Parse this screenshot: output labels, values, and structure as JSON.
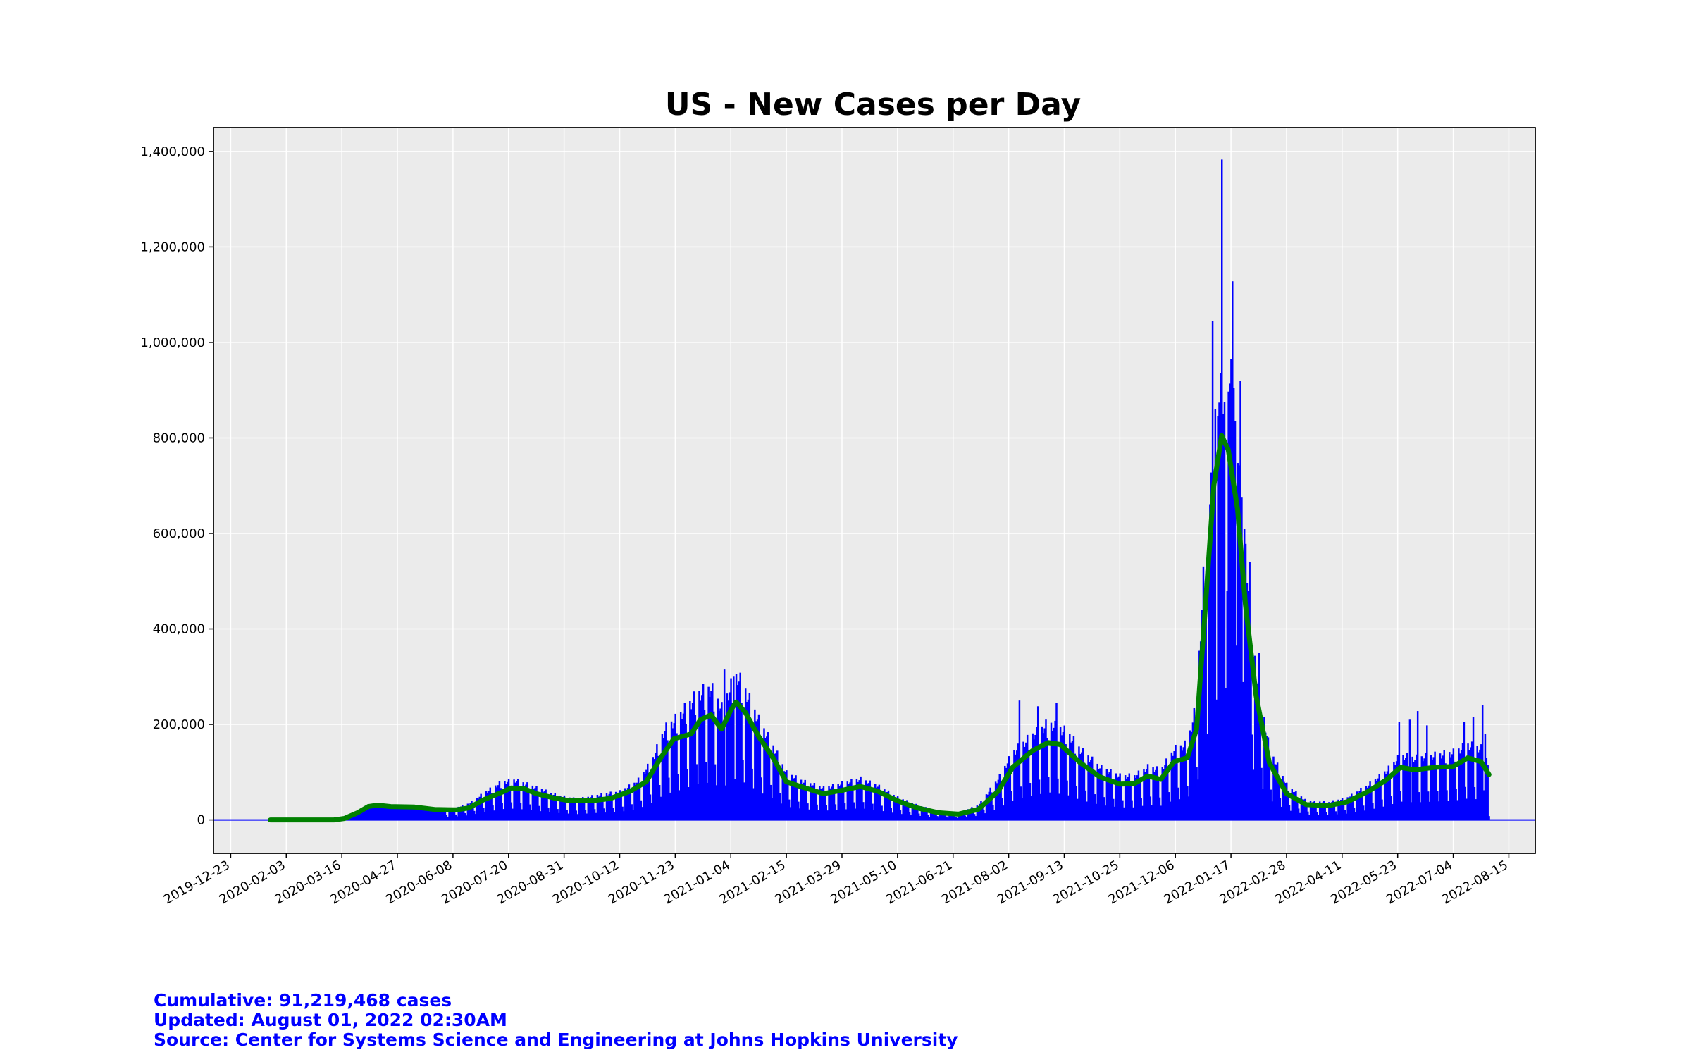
{
  "colors": {
    "bars": "#0000ff",
    "rolling_line": "#008000",
    "plot_background": "#ebebeb",
    "grid": "#ffffff",
    "footer_text": "#0000ff"
  },
  "footer": {
    "cumulative": "Cumulative:  91,219,468 cases",
    "updated": "Updated:  August 01, 2022 02:30AM",
    "source": "Source: Center for Systems Science and Engineering at Johns Hopkins University"
  },
  "chart_data": {
    "type": "bar",
    "title": "US - New Cases per Day",
    "xlabel": "",
    "ylabel": "",
    "xlim": [
      "2019-12-10",
      "2022-09-04"
    ],
    "ylim": [
      -70000,
      1450000
    ],
    "grid": true,
    "x_ticks": [
      "2019-12-23",
      "2020-02-03",
      "2020-03-16",
      "2020-04-27",
      "2020-06-08",
      "2020-07-20",
      "2020-08-31",
      "2020-10-12",
      "2020-11-23",
      "2021-01-04",
      "2021-02-15",
      "2021-03-29",
      "2021-05-10",
      "2021-06-21",
      "2021-08-02",
      "2021-09-13",
      "2021-10-25",
      "2021-12-06",
      "2022-01-17",
      "2022-02-28",
      "2022-04-11",
      "2022-05-23",
      "2022-07-04",
      "2022-08-15"
    ],
    "y_ticks": [
      0,
      200000,
      400000,
      600000,
      800000,
      1000000,
      1200000,
      1400000
    ],
    "y_tick_labels": [
      "0",
      "200,000",
      "400,000",
      "600,000",
      "800,000",
      "1,000,000",
      "1,200,000",
      "1,400,000"
    ],
    "series": [
      {
        "kind": "bars",
        "anchors": [
          [
            "2020-01-22",
            0
          ],
          [
            "2020-03-01",
            100
          ],
          [
            "2020-03-15",
            3000
          ],
          [
            "2020-03-25",
            15000
          ],
          [
            "2020-04-05",
            30000
          ],
          [
            "2020-04-12",
            32000
          ],
          [
            "2020-04-25",
            30000
          ],
          [
            "2020-05-10",
            27000
          ],
          [
            "2020-05-25",
            21000
          ],
          [
            "2020-06-08",
            19000
          ],
          [
            "2020-06-20",
            28000
          ],
          [
            "2020-07-01",
            45000
          ],
          [
            "2020-07-15",
            65000
          ],
          [
            "2020-07-25",
            68000
          ],
          [
            "2020-08-10",
            55000
          ],
          [
            "2020-08-25",
            42000
          ],
          [
            "2020-09-10",
            35000
          ],
          [
            "2020-09-25",
            42000
          ],
          [
            "2020-10-12",
            48000
          ],
          [
            "2020-10-25",
            65000
          ],
          [
            "2020-11-05",
            100000
          ],
          [
            "2020-11-15",
            155000
          ],
          [
            "2020-11-25",
            175000
          ],
          [
            "2020-12-10",
            215000
          ],
          [
            "2020-12-20",
            225000
          ],
          [
            "2020-12-28",
            190000
          ],
          [
            "2021-01-08",
            250000
          ],
          [
            "2021-01-15",
            220000
          ],
          [
            "2021-01-25",
            170000
          ],
          [
            "2021-02-05",
            125000
          ],
          [
            "2021-02-15",
            80000
          ],
          [
            "2021-02-28",
            65000
          ],
          [
            "2021-03-15",
            55000
          ],
          [
            "2021-03-29",
            62000
          ],
          [
            "2021-04-12",
            70000
          ],
          [
            "2021-04-25",
            58000
          ],
          [
            "2021-05-10",
            38000
          ],
          [
            "2021-05-25",
            25000
          ],
          [
            "2021-06-10",
            14000
          ],
          [
            "2021-06-25",
            12000
          ],
          [
            "2021-07-10",
            25000
          ],
          [
            "2021-07-25",
            70000
          ],
          [
            "2021-08-05",
            115000
          ],
          [
            "2021-08-20",
            145000
          ],
          [
            "2021-09-01",
            165000
          ],
          [
            "2021-09-15",
            150000
          ],
          [
            "2021-09-25",
            120000
          ],
          [
            "2021-10-10",
            90000
          ],
          [
            "2021-10-25",
            75000
          ],
          [
            "2021-11-05",
            75000
          ],
          [
            "2021-11-15",
            90000
          ],
          [
            "2021-11-25",
            85000
          ],
          [
            "2021-12-05",
            120000
          ],
          [
            "2021-12-15",
            130000
          ],
          [
            "2021-12-22",
            200000
          ],
          [
            "2021-12-28",
            450000
          ],
          [
            "2022-01-05",
            700000
          ],
          [
            "2022-01-10",
            800000
          ],
          [
            "2022-01-15",
            780000
          ],
          [
            "2022-01-22",
            650000
          ],
          [
            "2022-01-30",
            400000
          ],
          [
            "2022-02-05",
            250000
          ],
          [
            "2022-02-15",
            120000
          ],
          [
            "2022-02-28",
            60000
          ],
          [
            "2022-03-15",
            32000
          ],
          [
            "2022-04-01",
            30000
          ],
          [
            "2022-04-15",
            38000
          ],
          [
            "2022-05-01",
            60000
          ],
          [
            "2022-05-15",
            85000
          ],
          [
            "2022-05-25",
            110000
          ],
          [
            "2022-06-05",
            105000
          ],
          [
            "2022-06-20",
            110000
          ],
          [
            "2022-07-04",
            115000
          ],
          [
            "2022-07-15",
            128000
          ],
          [
            "2022-07-25",
            122000
          ],
          [
            "2022-07-31",
            95000
          ]
        ],
        "spikes": [
          [
            "2020-12-30",
            315000
          ],
          [
            "2021-01-06",
            300000
          ],
          [
            "2021-01-08",
            305000
          ],
          [
            "2021-08-10",
            250000
          ],
          [
            "2021-08-24",
            238000
          ],
          [
            "2021-09-07",
            245000
          ],
          [
            "2021-12-29",
            500000
          ],
          [
            "2021-12-31",
            590000
          ],
          [
            "2022-01-03",
            1045000
          ],
          [
            "2022-01-05",
            860000
          ],
          [
            "2022-01-07",
            845000
          ],
          [
            "2022-01-10",
            1383000
          ],
          [
            "2022-01-11",
            850000
          ],
          [
            "2022-01-12",
            875000
          ],
          [
            "2022-01-14",
            480000
          ],
          [
            "2022-01-18",
            1128000
          ],
          [
            "2022-01-19",
            905000
          ],
          [
            "2022-01-20",
            835000
          ],
          [
            "2022-01-21",
            365000
          ],
          [
            "2022-01-24",
            920000
          ],
          [
            "2022-01-25",
            675000
          ],
          [
            "2022-01-27",
            610000
          ],
          [
            "2022-01-31",
            540000
          ],
          [
            "2022-02-07",
            350000
          ],
          [
            "2022-05-24",
            205000
          ],
          [
            "2022-06-01",
            210000
          ],
          [
            "2022-06-07",
            228000
          ],
          [
            "2022-06-14",
            198000
          ],
          [
            "2022-07-12",
            205000
          ],
          [
            "2022-07-19",
            215000
          ],
          [
            "2022-07-26",
            240000
          ],
          [
            "2022-07-28",
            180000
          ]
        ]
      },
      {
        "kind": "rolling_line",
        "points": [
          [
            "2020-01-22",
            0
          ],
          [
            "2020-03-10",
            0
          ],
          [
            "2020-03-18",
            3000
          ],
          [
            "2020-03-28",
            15000
          ],
          [
            "2020-04-05",
            28000
          ],
          [
            "2020-04-12",
            31000
          ],
          [
            "2020-04-22",
            28000
          ],
          [
            "2020-05-10",
            27000
          ],
          [
            "2020-05-25",
            22000
          ],
          [
            "2020-06-10",
            21000
          ],
          [
            "2020-06-20",
            25000
          ],
          [
            "2020-07-01",
            42000
          ],
          [
            "2020-07-15",
            58000
          ],
          [
            "2020-07-22",
            67000
          ],
          [
            "2020-08-01",
            65000
          ],
          [
            "2020-08-10",
            55000
          ],
          [
            "2020-08-25",
            45000
          ],
          [
            "2020-09-05",
            40000
          ],
          [
            "2020-09-20",
            40000
          ],
          [
            "2020-10-05",
            45000
          ],
          [
            "2020-10-20",
            60000
          ],
          [
            "2020-11-01",
            80000
          ],
          [
            "2020-11-12",
            130000
          ],
          [
            "2020-11-22",
            170000
          ],
          [
            "2020-12-05",
            180000
          ],
          [
            "2020-12-12",
            210000
          ],
          [
            "2020-12-20",
            220000
          ],
          [
            "2020-12-28",
            190000
          ],
          [
            "2021-01-04",
            230000
          ],
          [
            "2021-01-08",
            247000
          ],
          [
            "2021-01-15",
            225000
          ],
          [
            "2021-01-25",
            175000
          ],
          [
            "2021-02-05",
            130000
          ],
          [
            "2021-02-15",
            80000
          ],
          [
            "2021-02-28",
            68000
          ],
          [
            "2021-03-15",
            55000
          ],
          [
            "2021-03-29",
            62000
          ],
          [
            "2021-04-12",
            70000
          ],
          [
            "2021-04-25",
            60000
          ],
          [
            "2021-05-10",
            40000
          ],
          [
            "2021-05-25",
            25000
          ],
          [
            "2021-06-10",
            15000
          ],
          [
            "2021-06-25",
            12000
          ],
          [
            "2021-07-10",
            22000
          ],
          [
            "2021-07-25",
            60000
          ],
          [
            "2021-08-05",
            110000
          ],
          [
            "2021-08-20",
            145000
          ],
          [
            "2021-09-01",
            162000
          ],
          [
            "2021-09-10",
            158000
          ],
          [
            "2021-09-25",
            120000
          ],
          [
            "2021-10-10",
            90000
          ],
          [
            "2021-10-25",
            75000
          ],
          [
            "2021-11-05",
            76000
          ],
          [
            "2021-11-15",
            92000
          ],
          [
            "2021-11-25",
            85000
          ],
          [
            "2021-12-05",
            122000
          ],
          [
            "2021-12-15",
            130000
          ],
          [
            "2021-12-22",
            190000
          ],
          [
            "2021-12-28",
            420000
          ],
          [
            "2022-01-04",
            700000
          ],
          [
            "2022-01-10",
            805000
          ],
          [
            "2022-01-15",
            775000
          ],
          [
            "2022-01-22",
            650000
          ],
          [
            "2022-01-28",
            450000
          ],
          [
            "2022-02-05",
            260000
          ],
          [
            "2022-02-15",
            120000
          ],
          [
            "2022-02-28",
            55000
          ],
          [
            "2022-03-15",
            32000
          ],
          [
            "2022-04-01",
            30000
          ],
          [
            "2022-04-15",
            38000
          ],
          [
            "2022-05-01",
            60000
          ],
          [
            "2022-05-15",
            85000
          ],
          [
            "2022-05-25",
            110000
          ],
          [
            "2022-06-05",
            105000
          ],
          [
            "2022-06-20",
            110000
          ],
          [
            "2022-07-04",
            112000
          ],
          [
            "2022-07-15",
            130000
          ],
          [
            "2022-07-25",
            122000
          ],
          [
            "2022-07-31",
            95000
          ]
        ]
      }
    ]
  }
}
